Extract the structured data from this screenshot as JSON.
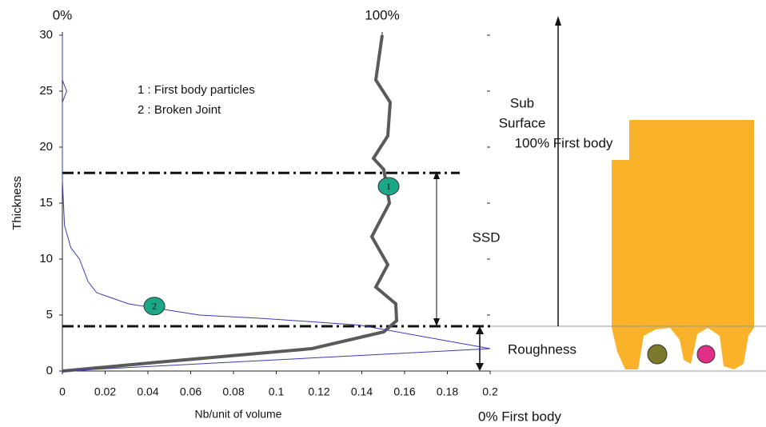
{
  "chart_data": {
    "type": "line",
    "xlabel": "Nb/unit of volume",
    "ylabel": "Thickness",
    "xlim": [
      0,
      0.2
    ],
    "xticks": [
      0,
      0.02,
      0.04,
      0.06,
      0.08,
      0.1,
      0.12,
      0.14,
      0.16,
      0.18,
      0.2
    ],
    "x2lim": [
      0,
      133.75
    ],
    "x2ticks": [
      {
        "value": 0,
        "label": "0%"
      },
      {
        "value": 100,
        "label": "100%"
      }
    ],
    "ylim": [
      0,
      30
    ],
    "yticks": [
      0,
      5,
      10,
      15,
      20,
      25,
      30
    ],
    "legend_lines": [
      "1 : First body particles",
      "2 : Broken Joint"
    ],
    "series": [
      {
        "marker": "1",
        "color": "#5a5a5a",
        "axis": "x2",
        "marker_at": [
          16.5,
          102
        ],
        "thickness": [
          30,
          26,
          24,
          21,
          19,
          18,
          15,
          12,
          9.5,
          7.5,
          6,
          4.5,
          3.5,
          2,
          0.8,
          0
        ],
        "values": [
          100,
          98,
          102.5,
          101.75,
          97.25,
          100.5,
          102.25,
          96.75,
          101.75,
          98,
          104.25,
          104.5,
          100.5,
          78,
          30.5,
          0
        ]
      },
      {
        "marker": "2",
        "color": "#3a3ab0",
        "marker_at": [
          5.8,
          0.043
        ],
        "thickness": [
          30,
          26,
          25,
          24,
          17,
          13,
          11,
          10,
          8,
          7,
          6,
          5,
          4.7,
          4.1,
          2,
          0
        ],
        "values": [
          0,
          0,
          0.002,
          0,
          0,
          0.001,
          0.004,
          0.008,
          0.012,
          0.016,
          0.031,
          0.064,
          0.094,
          0.139,
          0.2,
          0
        ]
      }
    ],
    "reference_lines": [
      17.7,
      4
    ],
    "annotations": {
      "sub_surface": [
        "Sub",
        "Surface",
        "100% First body"
      ],
      "ssd": "SSD",
      "roughness": "Roughness",
      "zero": "0% First body"
    }
  }
}
